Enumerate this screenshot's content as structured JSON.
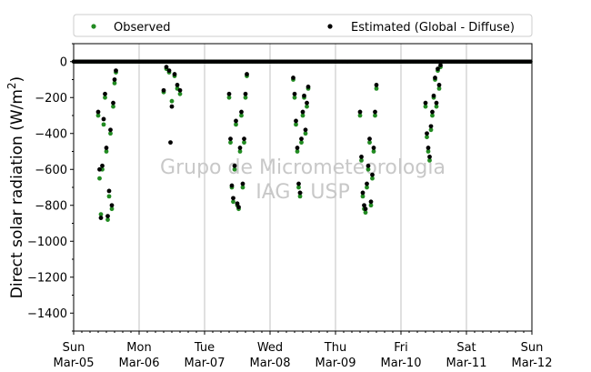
{
  "chart_data": {
    "type": "scatter",
    "title": "",
    "xlabel": "",
    "ylabel_main": "Direct solar radiation (W/m",
    "ylabel_sup": "2",
    "ylabel_close": ")",
    "xlim": [
      "2017-03-05 00:00",
      "2017-03-12 00:00"
    ],
    "ylim": [
      -1500,
      100
    ],
    "yticks": [
      0,
      -200,
      -400,
      -600,
      -800,
      -1000,
      -1200,
      -1400
    ],
    "xticks": [
      {
        "day": "Sun",
        "date": "Mar-05"
      },
      {
        "day": "Mon",
        "date": "Mar-06"
      },
      {
        "day": "Tue",
        "date": "Mar-07"
      },
      {
        "day": "Wed",
        "date": "Mar-08"
      },
      {
        "day": "Thu",
        "date": "Mar-09"
      },
      {
        "day": "Fri",
        "date": "Mar-10"
      },
      {
        "day": "Sat",
        "date": "Mar-11"
      },
      {
        "day": "Sun",
        "date": "Mar-12"
      }
    ],
    "legend_position": "top, above plot",
    "grid": "vertical at day boundaries",
    "zero_line": true,
    "watermark": [
      "Grupo de Micrometeorologia",
      "IAG - USP"
    ],
    "series": [
      {
        "name": "Observed",
        "color": "#228b22",
        "days": [
          {
            "day_index": 0,
            "points": [
              [
                "09:00",
                -300
              ],
              [
                "09:30",
                -650
              ],
              [
                "10:00",
                -850
              ],
              [
                "10:30",
                -600
              ],
              [
                "11:00",
                -350
              ],
              [
                "11:30",
                -200
              ],
              [
                "12:00",
                -500
              ],
              [
                "12:30",
                -880
              ],
              [
                "13:00",
                -750
              ],
              [
                "13:30",
                -400
              ],
              [
                "14:00",
                -820
              ],
              [
                "14:30",
                -250
              ],
              [
                "15:00",
                -120
              ],
              [
                "15:30",
                -60
              ]
            ]
          },
          {
            "day_index": 1,
            "points": [
              [
                "09:00",
                -170
              ],
              [
                "10:00",
                -40
              ],
              [
                "11:00",
                -60
              ],
              [
                "12:00",
                -220
              ],
              [
                "13:00",
                -80
              ],
              [
                "14:00",
                -150
              ],
              [
                "15:00",
                -180
              ]
            ]
          },
          {
            "day_index": 2,
            "points": [
              [
                "09:00",
                -200
              ],
              [
                "09:30",
                -450
              ],
              [
                "10:00",
                -700
              ],
              [
                "10:30",
                -780
              ],
              [
                "11:00",
                -600
              ],
              [
                "11:30",
                -350
              ],
              [
                "12:00",
                -800
              ],
              [
                "12:30",
                -820
              ],
              [
                "13:00",
                -500
              ],
              [
                "13:30",
                -300
              ],
              [
                "14:00",
                -700
              ],
              [
                "14:30",
                -450
              ],
              [
                "15:00",
                -200
              ],
              [
                "15:30",
                -80
              ]
            ]
          },
          {
            "day_index": 3,
            "points": [
              [
                "08:30",
                -100
              ],
              [
                "09:00",
                -200
              ],
              [
                "09:30",
                -350
              ],
              [
                "10:00",
                -500
              ],
              [
                "10:30",
                -700
              ],
              [
                "11:00",
                -750
              ],
              [
                "11:30",
                -450
              ],
              [
                "12:00",
                -300
              ],
              [
                "12:30",
                -200
              ],
              [
                "13:00",
                -400
              ],
              [
                "13:30",
                -250
              ],
              [
                "14:00",
                -150
              ]
            ]
          },
          {
            "day_index": 4,
            "points": [
              [
                "09:00",
                -300
              ],
              [
                "09:30",
                -550
              ],
              [
                "10:00",
                -750
              ],
              [
                "10:30",
                -820
              ],
              [
                "11:00",
                -840
              ],
              [
                "11:30",
                -700
              ],
              [
                "12:00",
                -600
              ],
              [
                "12:30",
                -450
              ],
              [
                "13:00",
                -800
              ],
              [
                "13:30",
                -650
              ],
              [
                "14:00",
                -500
              ],
              [
                "14:30",
                -300
              ],
              [
                "15:00",
                -150
              ]
            ]
          },
          {
            "day_index": 5,
            "points": [
              [
                "09:00",
                -250
              ],
              [
                "09:30",
                -420
              ],
              [
                "10:00",
                -500
              ],
              [
                "10:30",
                -550
              ],
              [
                "11:00",
                -380
              ],
              [
                "11:30",
                -300
              ],
              [
                "12:00",
                -200
              ],
              [
                "12:30",
                -100
              ],
              [
                "13:00",
                -250
              ],
              [
                "13:30",
                -50
              ],
              [
                "14:00",
                -150
              ],
              [
                "14:30",
                -30
              ]
            ]
          }
        ]
      },
      {
        "name": "Estimated (Global - Diffuse)",
        "color": "#000000",
        "days": [
          {
            "day_index": 0,
            "points": [
              [
                "09:00",
                -280
              ],
              [
                "09:30",
                -600
              ],
              [
                "10:00",
                -870
              ],
              [
                "10:30",
                -580
              ],
              [
                "11:00",
                -320
              ],
              [
                "11:30",
                -180
              ],
              [
                "12:00",
                -480
              ],
              [
                "12:30",
                -860
              ],
              [
                "13:00",
                -720
              ],
              [
                "13:30",
                -380
              ],
              [
                "14:00",
                -800
              ],
              [
                "14:30",
                -230
              ],
              [
                "15:00",
                -100
              ],
              [
                "15:30",
                -50
              ]
            ]
          },
          {
            "day_index": 1,
            "points": [
              [
                "09:00",
                -160
              ],
              [
                "10:00",
                -30
              ],
              [
                "11:00",
                -50
              ],
              [
                "11:30",
                -450
              ],
              [
                "12:00",
                -250
              ],
              [
                "13:00",
                -70
              ],
              [
                "14:00",
                -130
              ],
              [
                "15:00",
                -160
              ]
            ]
          },
          {
            "day_index": 2,
            "points": [
              [
                "09:00",
                -180
              ],
              [
                "09:30",
                -430
              ],
              [
                "10:00",
                -690
              ],
              [
                "10:30",
                -760
              ],
              [
                "11:00",
                -580
              ],
              [
                "11:30",
                -330
              ],
              [
                "12:00",
                -790
              ],
              [
                "12:30",
                -810
              ],
              [
                "13:00",
                -480
              ],
              [
                "13:30",
                -280
              ],
              [
                "14:00",
                -680
              ],
              [
                "14:30",
                -430
              ],
              [
                "15:00",
                -180
              ],
              [
                "15:30",
                -70
              ]
            ]
          },
          {
            "day_index": 3,
            "points": [
              [
                "08:30",
                -90
              ],
              [
                "09:00",
                -180
              ],
              [
                "09:30",
                -330
              ],
              [
                "10:00",
                -480
              ],
              [
                "10:30",
                -680
              ],
              [
                "11:00",
                -730
              ],
              [
                "11:30",
                -430
              ],
              [
                "12:00",
                -280
              ],
              [
                "12:30",
                -190
              ],
              [
                "13:00",
                -380
              ],
              [
                "13:30",
                -230
              ],
              [
                "14:00",
                -140
              ]
            ]
          },
          {
            "day_index": 4,
            "points": [
              [
                "09:00",
                -280
              ],
              [
                "09:30",
                -530
              ],
              [
                "10:00",
                -730
              ],
              [
                "10:30",
                -800
              ],
              [
                "11:00",
                -820
              ],
              [
                "11:30",
                -680
              ],
              [
                "12:00",
                -580
              ],
              [
                "12:30",
                -430
              ],
              [
                "13:00",
                -780
              ],
              [
                "13:30",
                -630
              ],
              [
                "14:00",
                -480
              ],
              [
                "14:30",
                -280
              ],
              [
                "15:00",
                -130
              ]
            ]
          },
          {
            "day_index": 5,
            "points": [
              [
                "09:00",
                -230
              ],
              [
                "09:30",
                -400
              ],
              [
                "10:00",
                -480
              ],
              [
                "10:30",
                -530
              ],
              [
                "11:00",
                -360
              ],
              [
                "11:30",
                -280
              ],
              [
                "12:00",
                -190
              ],
              [
                "12:30",
                -90
              ],
              [
                "13:00",
                -230
              ],
              [
                "13:30",
                -40
              ],
              [
                "14:00",
                -130
              ],
              [
                "14:30",
                -20
              ]
            ]
          }
        ]
      }
    ]
  }
}
